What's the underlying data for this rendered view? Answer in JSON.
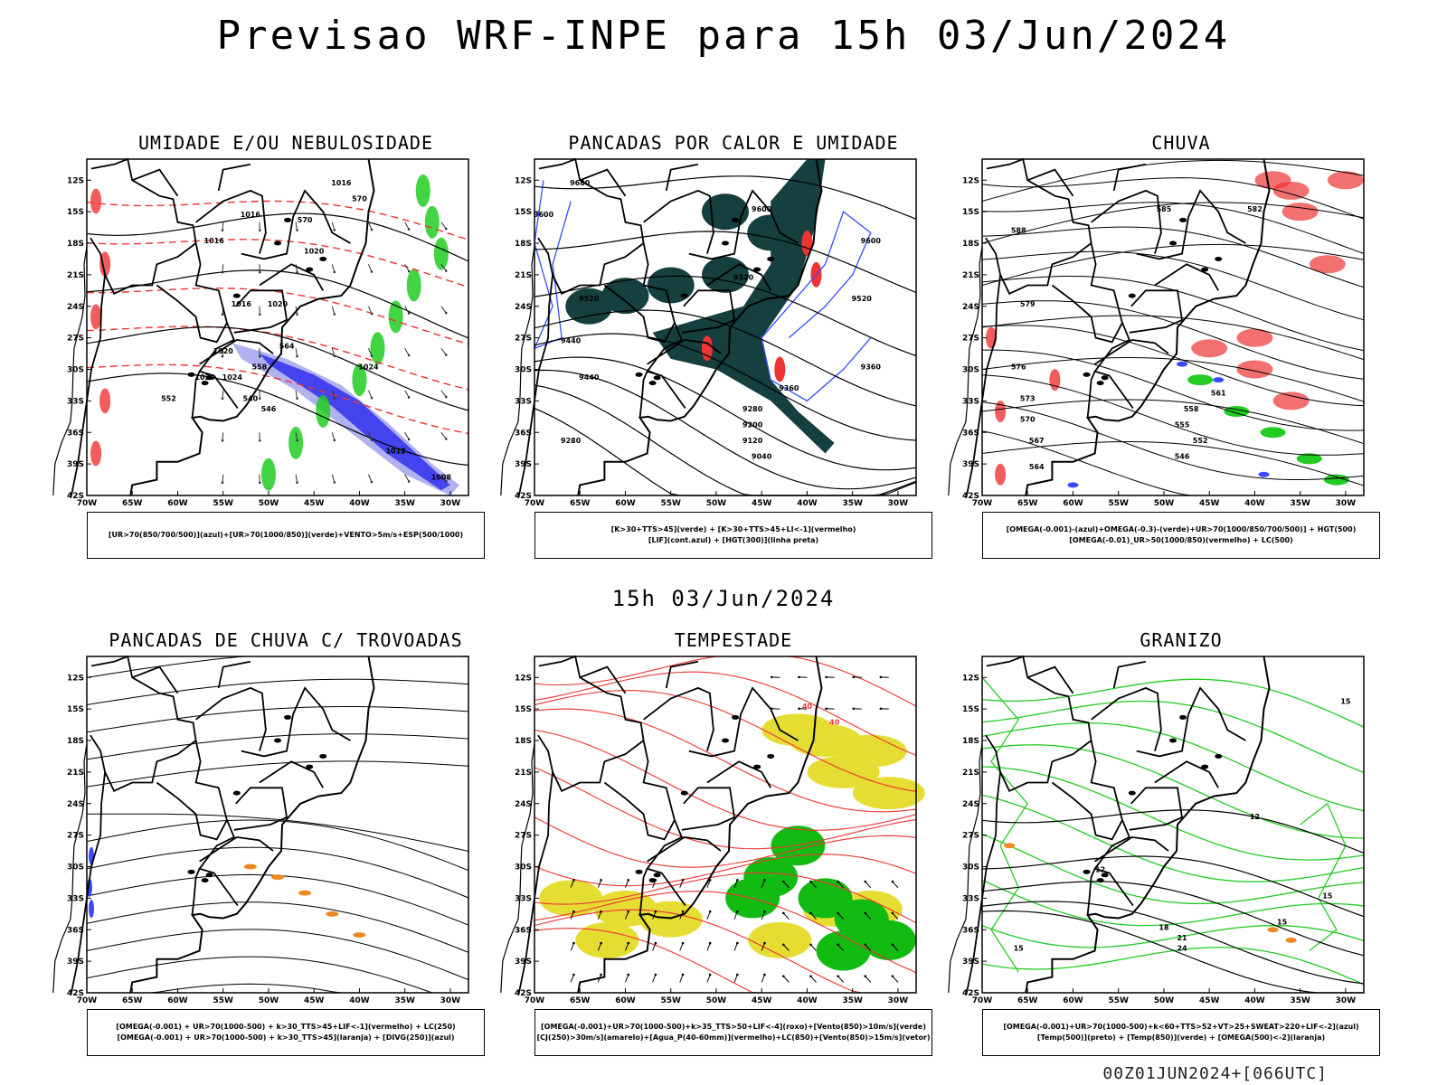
{
  "header": {
    "title": "Previsao WRF-INPE  para 15h 03/Jun/2024"
  },
  "mid_title": "15h 03/Jun/2024",
  "footer": "00Z01JUN2024+[066UTC]",
  "axes": {
    "lat_ticks": [
      "12S",
      "15S",
      "18S",
      "21S",
      "24S",
      "27S",
      "30S",
      "33S",
      "36S",
      "39S",
      "42S"
    ],
    "lon_ticks": [
      "70W",
      "65W",
      "60W",
      "55W",
      "50W",
      "45W",
      "40W",
      "35W",
      "30W"
    ],
    "xlim": [
      -70,
      -28
    ],
    "ylim": [
      -42,
      -10
    ]
  },
  "colors": {
    "azul": "#3a4bff",
    "verde": "#22cc22",
    "vermelho": "#ee3333",
    "laranja": "#ee8822",
    "amarelo": "#e6dd33",
    "roxo": "#9999ee",
    "dark_teal": "#163f3f",
    "preto": "#000000"
  },
  "chart_data": [
    {
      "type": "map",
      "title": "UMIDADE E/OU NEBULOSIDADE",
      "legend": [
        "[UR>70(850/700/500)](azul)+[UR>70(1000/850)](verde)+VENTO>5m/s+ESP(500/1000)"
      ],
      "contour_labels": [
        "1016",
        "1016",
        "1016",
        "1016",
        "1020",
        "1020",
        "1020",
        "1020",
        "1024",
        "1024",
        "1012",
        "1008",
        "570",
        "570",
        "564",
        "558",
        "552",
        "546",
        "540"
      ]
    },
    {
      "type": "map",
      "title": "PANCADAS POR CALOR E UMIDADE",
      "legend": [
        "[K>30+TTS>45](verde) + [K>30+TTS>45+LI<-1](vermelho)",
        "[LIF](cont.azul) + [HGT(300)](linha preta)"
      ],
      "contour_labels": [
        "9680",
        "9600",
        "9600",
        "9600",
        "9520",
        "9520",
        "9520",
        "9440",
        "9440",
        "9360",
        "9360",
        "9280",
        "9280",
        "9200",
        "9120",
        "9040"
      ]
    },
    {
      "type": "map",
      "title": "CHUVA",
      "legend": [
        "[OMEGA(-0.001)-(azul)+OMEGA(-0.3)-(verde)+UR>70(1000/850/700/500)] + HGT(500)",
        "[OMEGA(-0.01)_UR>50(1000/850)(vermelho) + LC(500)"
      ],
      "contour_labels": [
        "585",
        "588",
        "582",
        "579",
        "576",
        "573",
        "570",
        "567",
        "564",
        "561",
        "558",
        "555",
        "552",
        "546"
      ]
    },
    {
      "type": "map",
      "title": "PANCADAS DE CHUVA C/ TROVOADAS",
      "legend": [
        "[OMEGA(-0.001) + UR>70(1000-500) + k>30_TTS>45+LIF<-1](vermelho) + LC(250)",
        "[OMEGA(-0.001) + UR>70(1000-500) + k>30_TTS>45](laranja) + [DIVG(250)](azul)"
      ],
      "contour_labels": []
    },
    {
      "type": "map",
      "title": "TEMPESTADE",
      "legend": [
        "[OMEGA(-0.001)+UR>70(1000-500)+k>35_TTS>50+LIF<-4](roxo)+[Vento(850)>10m/s](verde)",
        "[CJ(250)>30m/s](amarelo)+[Agua_P(40-60mm)](vermelho)+LC(850)+[Vento(850)>15m/s](vetor)"
      ],
      "contour_labels": [
        "40",
        "40"
      ]
    },
    {
      "type": "map",
      "title": "GRANIZO",
      "legend": [
        "[OMEGA(-0.001)+UR>70(1000-500)+k<60+TTS>52+VT>25+SWEAT>220+LIF<-2](azul)",
        "[Temp(500)](preto) + [Temp(850)](verde) + [OMEGA(500)<-2](laranja)"
      ],
      "contour_labels": [
        "15",
        "12",
        "12",
        "15",
        "18",
        "21",
        "24",
        "15",
        "15"
      ]
    }
  ]
}
